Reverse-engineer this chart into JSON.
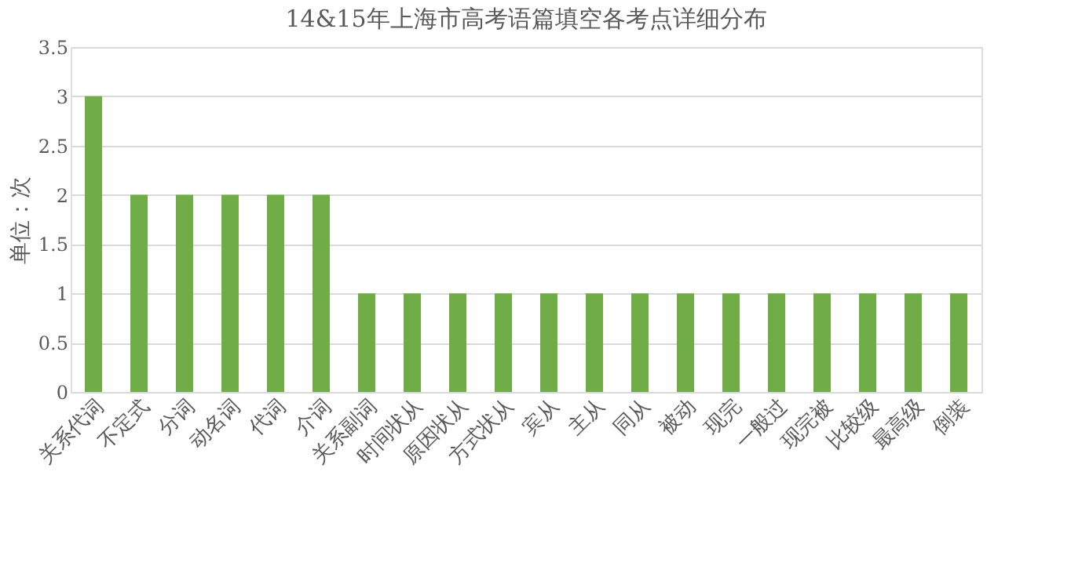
{
  "chart_data": {
    "type": "bar",
    "title": "14&15年上海市高考语篇填空各考点详细分布",
    "ylabel": "单位：次",
    "categories": [
      "关系代词",
      "不定式",
      "分词",
      "动名词",
      "代词",
      "介词",
      "关系副词",
      "时间状从",
      "原因状从",
      "方式状从",
      "宾从",
      "主从",
      "同从",
      "被动",
      "现完",
      "一般过",
      "现完被",
      "比较级",
      "最高级",
      "倒装"
    ],
    "values": [
      3,
      2,
      2,
      2,
      2,
      2,
      1,
      1,
      1,
      1,
      1,
      1,
      1,
      1,
      1,
      1,
      1,
      1,
      1,
      1
    ],
    "color": "#70ad47",
    "ylim": [
      0,
      3.5
    ],
    "yticks": [
      0,
      0.5,
      1,
      1.5,
      2,
      2.5,
      3,
      3.5
    ],
    "grid": "y"
  }
}
